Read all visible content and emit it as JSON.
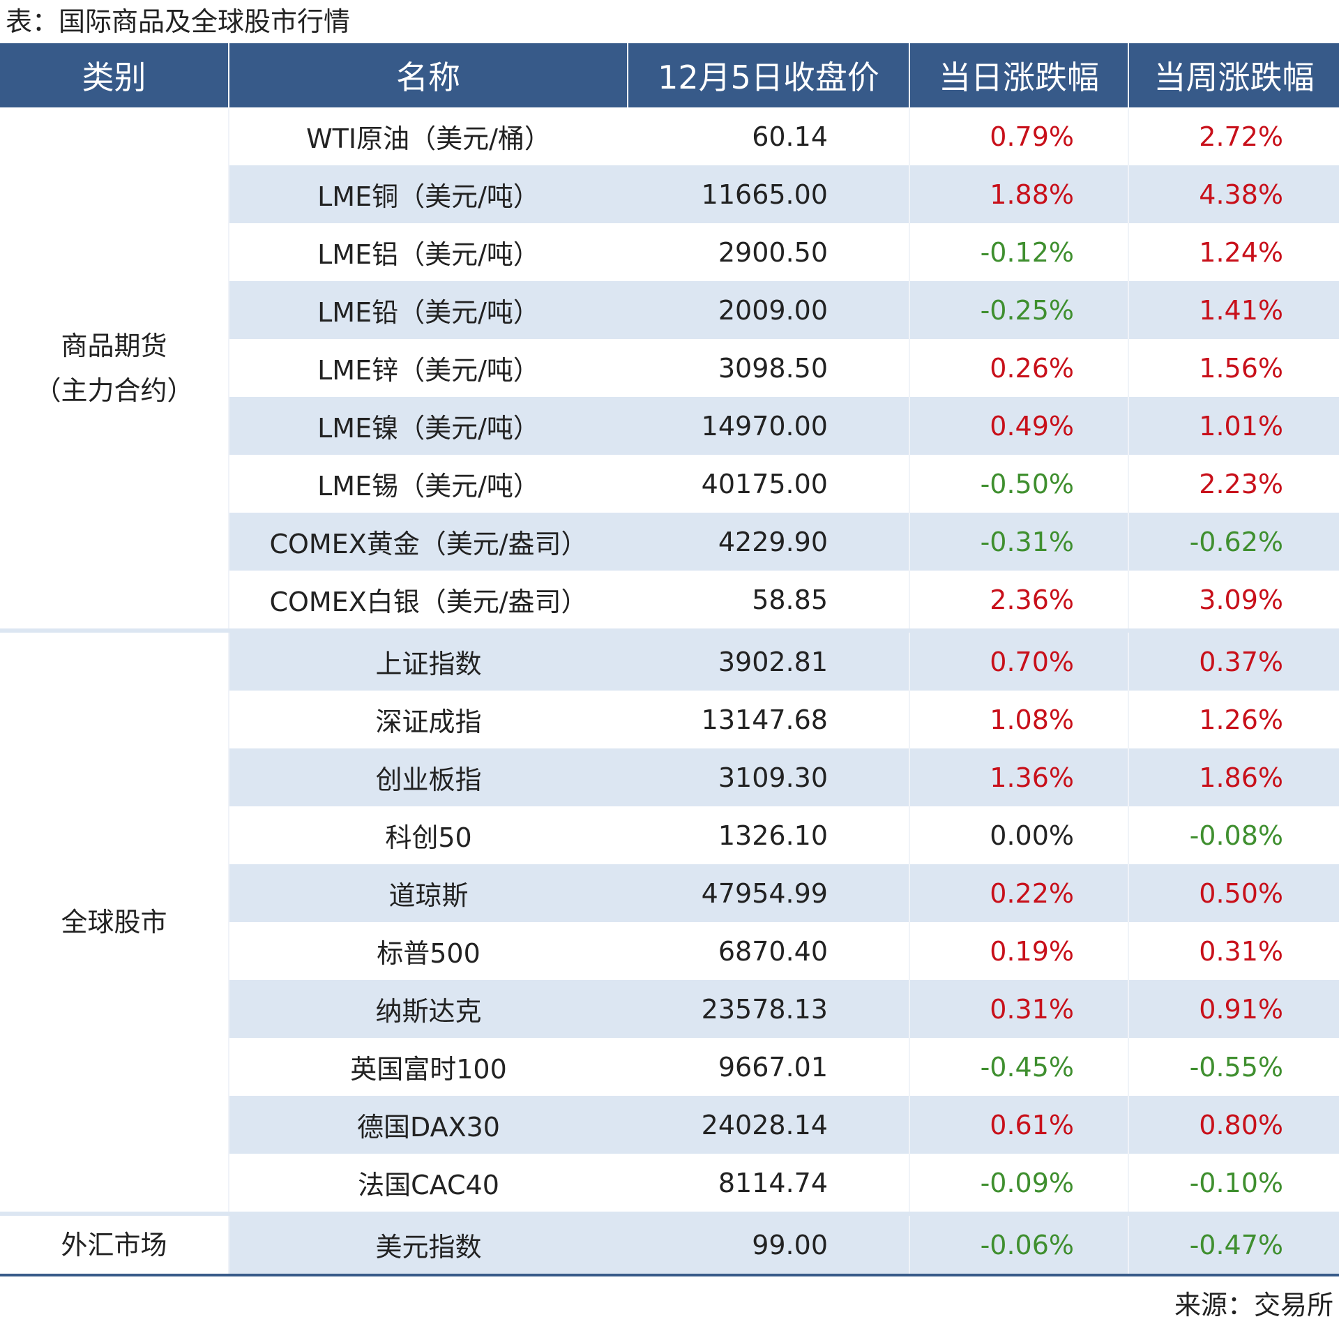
{
  "title": "表：国际商品及全球股市行情",
  "table": {
    "header": [
      "类别",
      "名称",
      "12月5日收盘价",
      "当日涨跌幅",
      "当周涨跌幅"
    ],
    "groups": [
      {
        "category": [
          "商品期货",
          "（主力合约）"
        ],
        "rows": [
          [
            "WTI原油（美元/桶）",
            "60.14",
            "0.79%",
            "2.72%"
          ],
          [
            "LME铜（美元/吨）",
            "11665.00",
            "1.88%",
            "4.38%"
          ],
          [
            "LME铝（美元/吨）",
            "2900.50",
            "-0.12%",
            "1.24%"
          ],
          [
            "LME铅（美元/吨）",
            "2009.00",
            "-0.25%",
            "1.41%"
          ],
          [
            "LME锌（美元/吨）",
            "3098.50",
            "0.26%",
            "1.56%"
          ],
          [
            "LME镍（美元/吨）",
            "14970.00",
            "0.49%",
            "1.01%"
          ],
          [
            "LME锡（美元/吨）",
            "40175.00",
            "-0.50%",
            "2.23%"
          ],
          [
            "COMEX黄金（美元/盎司）",
            "4229.90",
            "-0.31%",
            "-0.62%"
          ],
          [
            "COMEX白银（美元/盎司）",
            "58.85",
            "2.36%",
            "3.09%"
          ]
        ]
      },
      {
        "category": [
          "全球股市"
        ],
        "rows": [
          [
            "上证指数",
            "3902.81",
            "0.70%",
            "0.37%"
          ],
          [
            "深证成指",
            "13147.68",
            "1.08%",
            "1.26%"
          ],
          [
            "创业板指",
            "3109.30",
            "1.36%",
            "1.86%"
          ],
          [
            "科创50",
            "1326.10",
            "0.00%",
            "-0.08%"
          ],
          [
            "道琼斯",
            "47954.99",
            "0.22%",
            "0.50%"
          ],
          [
            "标普500",
            "6870.40",
            "0.19%",
            "0.31%"
          ],
          [
            "纳斯达克",
            "23578.13",
            "0.31%",
            "0.91%"
          ],
          [
            "英国富时100",
            "9667.01",
            "-0.45%",
            "-0.55%"
          ],
          [
            "德国DAX30",
            "24028.14",
            "0.61%",
            "0.80%"
          ],
          [
            "法国CAC40",
            "8114.74",
            "-0.09%",
            "-0.10%"
          ]
        ]
      },
      {
        "category": [
          "外汇市场"
        ],
        "rows": [
          [
            "美元指数",
            "99.00",
            "-0.06%",
            "-0.47%"
          ]
        ]
      }
    ]
  },
  "source": "来源：交易所"
}
